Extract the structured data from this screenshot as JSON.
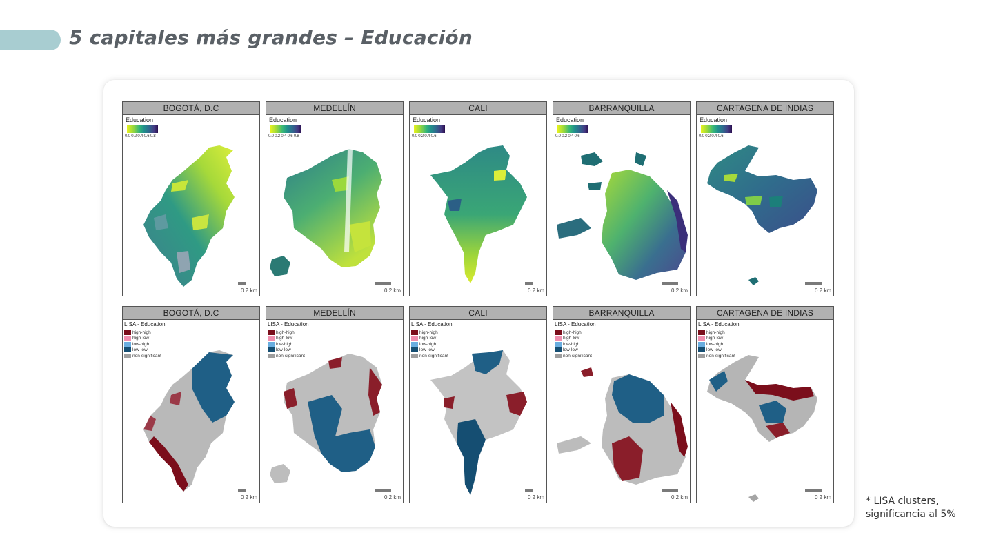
{
  "slide": {
    "title": "5 capitales más grandes – Educación",
    "accent_color": "#a8cdd1"
  },
  "cities": [
    "BOGOTÁ, D.C",
    "MEDELLÍN",
    "CALI",
    "BARRANQUILLA",
    "CARTAGENA DE INDIAS"
  ],
  "education_row": {
    "legend_title": "Education",
    "ticks": [
      "0.0 0.2 0.4 0.6 0.8",
      "0.0 0.2 0.4 0.6 0.8",
      "0.0 0.2 0.4 0.6",
      "0.0 0.2 0.4 0.6",
      "0.0 0.2 0.4 0.6"
    ],
    "colors": [
      "#e8f21f",
      "#9bd93c",
      "#35b779",
      "#21908c",
      "#31688e",
      "#443a83",
      "#2a0f4e"
    ]
  },
  "lisa_row": {
    "legend_title": "LISA - Education",
    "categories": [
      {
        "label": "high-high",
        "color": "#7b0e1b"
      },
      {
        "label": "high-low",
        "color": "#f08eae"
      },
      {
        "label": "low-high",
        "color": "#6aaee0"
      },
      {
        "label": "low-low",
        "color": "#154e72"
      },
      {
        "label": "non-significant",
        "color": "#9e9e9e"
      }
    ]
  },
  "scale_label": "0    2 km",
  "footnote": {
    "line1": "* LISA clusters,",
    "line2": "significancia al 5%"
  }
}
